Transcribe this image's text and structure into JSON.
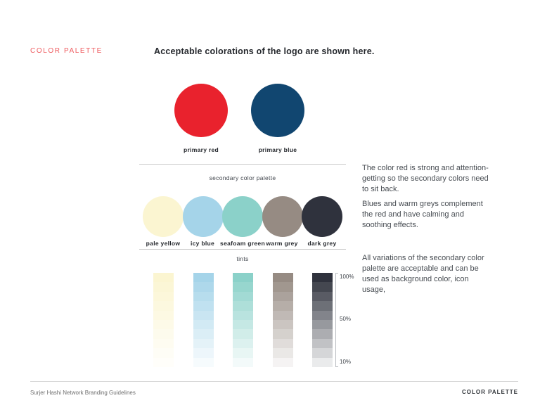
{
  "page": {
    "section_label": "COLOR PALETTE",
    "heading": "Acceptable colorations of the logo are shown here.",
    "accent_color": "#EE5A5E"
  },
  "primary_palette": {
    "swatches": [
      {
        "name": "primary red",
        "color": "#E9222D"
      },
      {
        "name": "primary blue",
        "color": "#114670"
      }
    ]
  },
  "secondary_palette": {
    "title": "secondary color palette",
    "swatches": [
      {
        "name": "pale yellow",
        "color": "#FBF5D1"
      },
      {
        "name": "icy blue",
        "color": "#A5D4E9"
      },
      {
        "name": "seafoam green",
        "color": "#8BD1C9"
      },
      {
        "name": "warm grey",
        "color": "#968B83"
      },
      {
        "name": "dark grey",
        "color": "#2F323D"
      }
    ]
  },
  "tints": {
    "title": "tints",
    "levels": [
      100,
      90,
      80,
      70,
      60,
      50,
      40,
      30,
      20,
      10
    ],
    "scale_labels": [
      "100%",
      "50%",
      "10%"
    ]
  },
  "notes": [
    "The color red is strong and attention-getting so the secondary colors need to sit back.",
    "Blues and warm greys complement the red and have calming and soothing effects.",
    "All variations of the secondary color palette are acceptable and can be used as background color, icon usage,"
  ],
  "footer": {
    "left": "Surjer Hashi Network Branding Guidelines",
    "right": "COLOR PALETTE"
  }
}
